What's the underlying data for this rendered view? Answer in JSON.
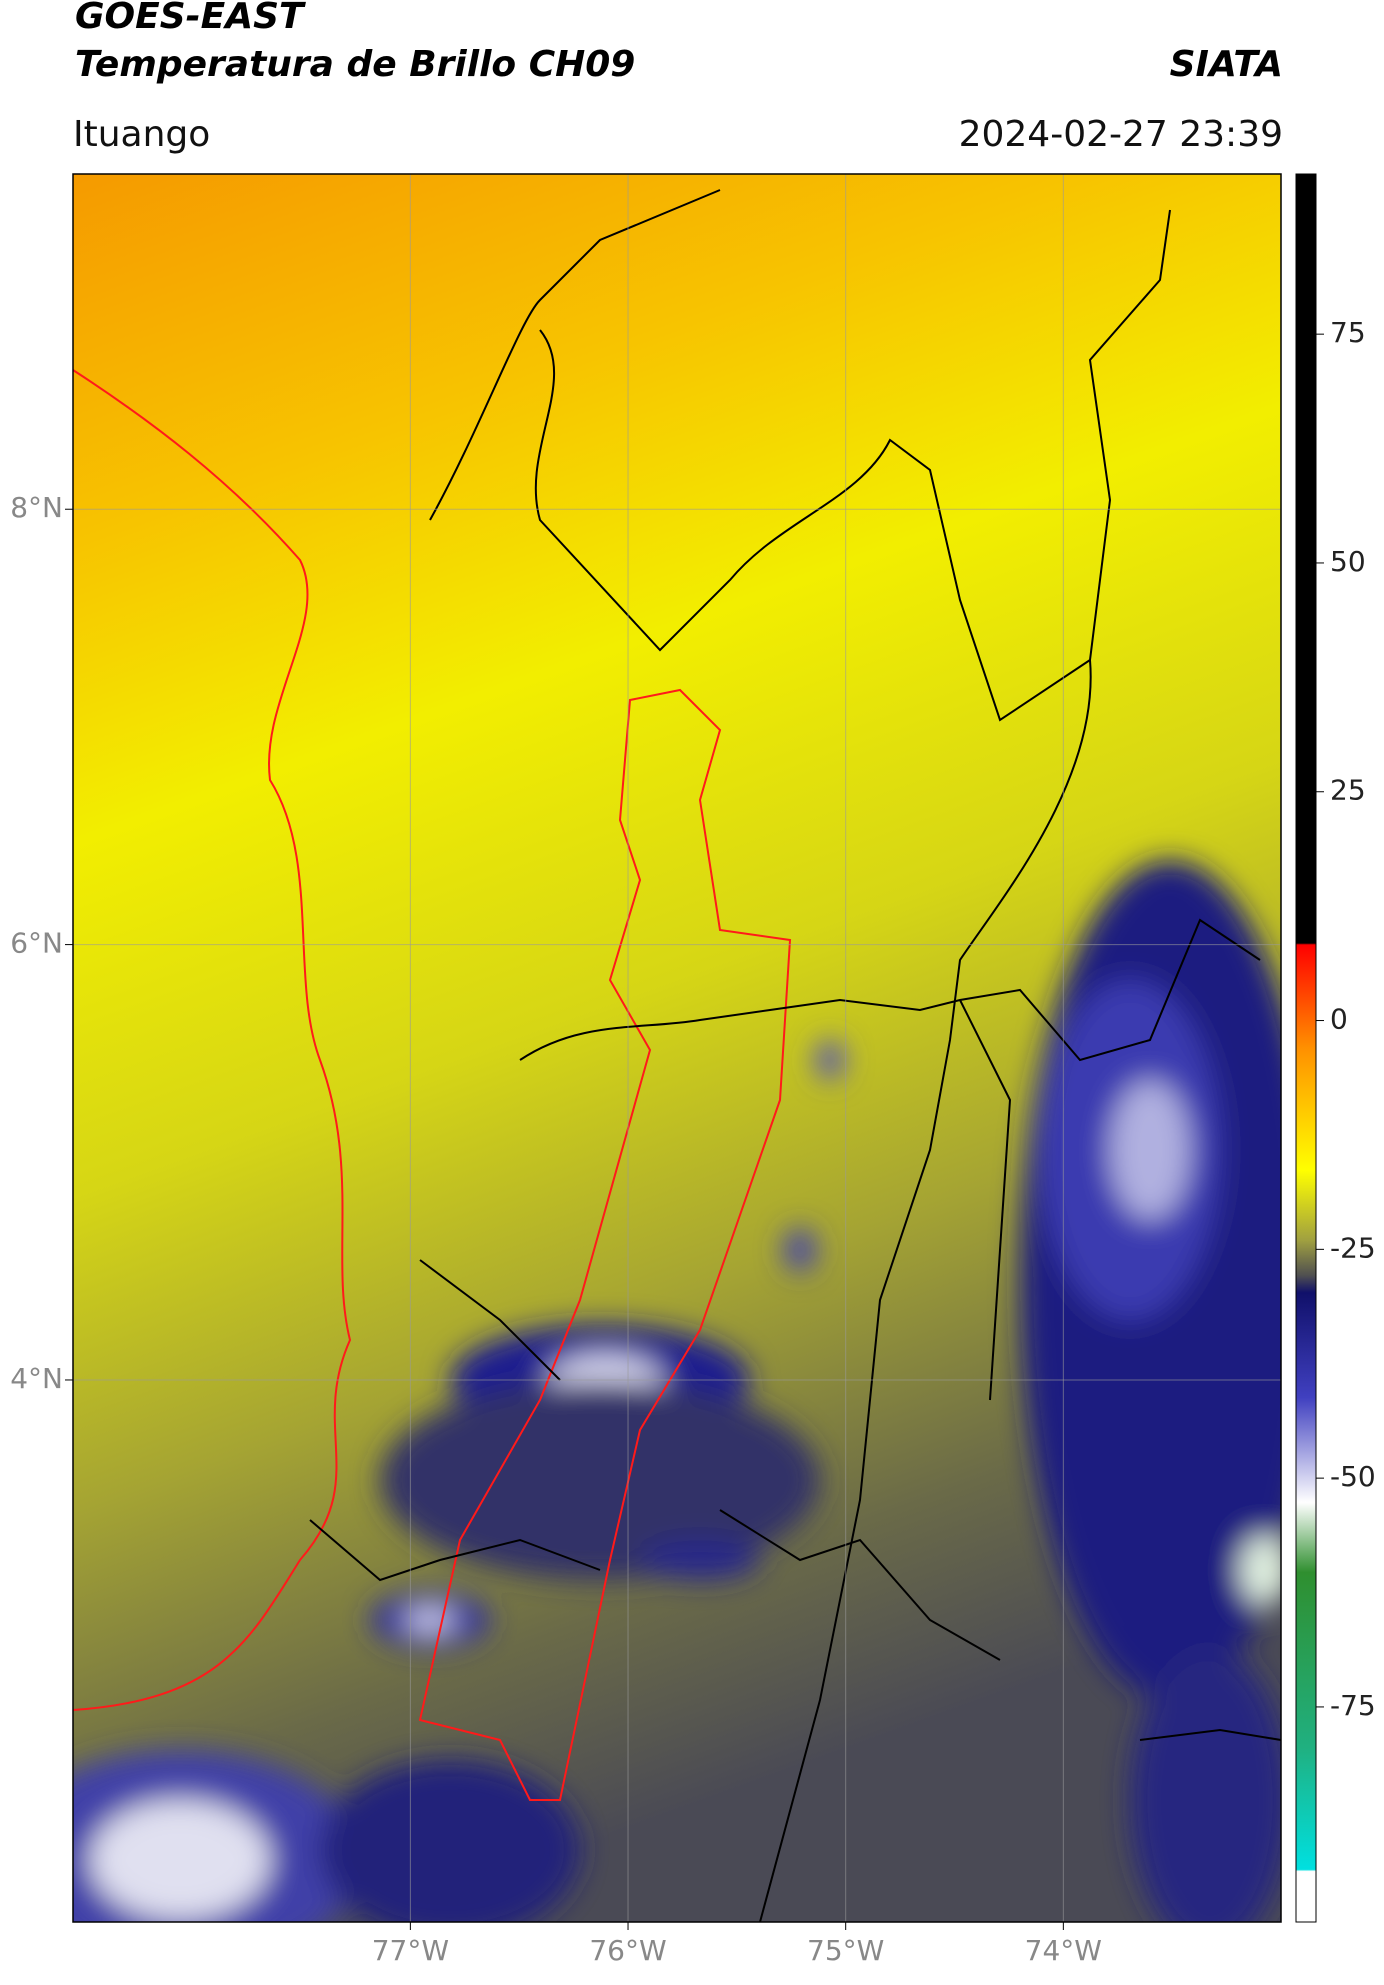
{
  "header": {
    "title_line1": "GOES-EAST",
    "title_line2": "Temperatura de Brillo CH09",
    "agency": "SIATA",
    "location": "Ituango",
    "datetime": "2024-02-27 23:39"
  },
  "map": {
    "lonlim": [
      -78.55,
      -73.0
    ],
    "latlim": [
      1.51,
      9.54
    ],
    "lon_ticks": [
      {
        "value": -77,
        "label": "77°W"
      },
      {
        "value": -76,
        "label": "76°W"
      },
      {
        "value": -75,
        "label": "75°W"
      },
      {
        "value": -74,
        "label": "74°W"
      }
    ],
    "lat_ticks": [
      {
        "value": 8,
        "label": "8°N"
      },
      {
        "value": 6,
        "label": "6°N"
      },
      {
        "value": 4,
        "label": "4°N"
      }
    ],
    "grid": true
  },
  "colorbar": {
    "lim": [
      -98.5,
      92.5
    ],
    "ticks": [
      75,
      50,
      25,
      0,
      -25,
      -50,
      -75
    ]
  }
}
